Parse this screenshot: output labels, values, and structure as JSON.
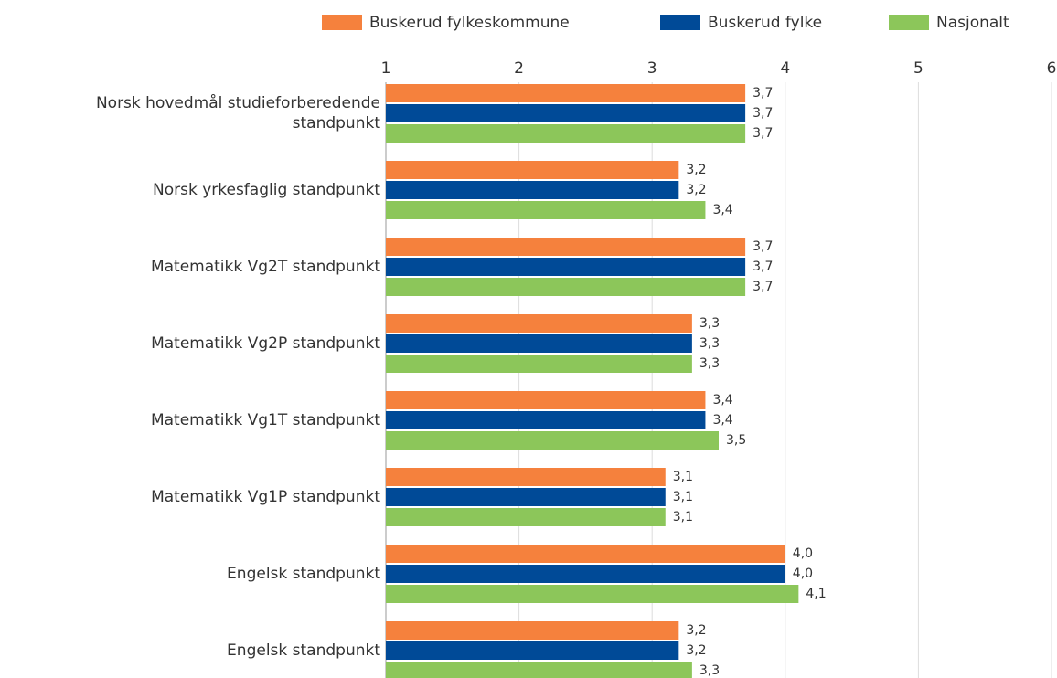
{
  "chart_data": {
    "type": "hbar",
    "categories": [
      "Norsk hovedmål studieforberedende standpunkt",
      "Norsk yrkesfaglig standpunkt",
      "Matematikk Vg2T standpunkt",
      "Matematikk Vg2P standpunkt",
      "Matematikk Vg1T standpunkt",
      "Matematikk Vg1P standpunkt",
      "Engelsk standpunkt",
      "Engelsk standpunkt"
    ],
    "series": [
      {
        "name": "Buskerud fylkeskommune",
        "color": "#f5813d",
        "values": [
          3.7,
          3.2,
          3.7,
          3.3,
          3.4,
          3.1,
          4.0,
          3.2
        ],
        "value_labels": [
          "3,7",
          "3,2",
          "3,7",
          "3,3",
          "3,4",
          "3,1",
          "4,0",
          "3,2"
        ]
      },
      {
        "name": "Buskerud fylke",
        "color": "#004a97",
        "values": [
          3.7,
          3.2,
          3.7,
          3.3,
          3.4,
          3.1,
          4.0,
          3.2
        ],
        "value_labels": [
          "3,7",
          "3,2",
          "3,7",
          "3,3",
          "3,4",
          "3,1",
          "4,0",
          "3,2"
        ]
      },
      {
        "name": "Nasjonalt",
        "color": "#8cc65a",
        "values": [
          3.7,
          3.4,
          3.7,
          3.3,
          3.5,
          3.1,
          4.1,
          3.3
        ],
        "value_labels": [
          "3,7",
          "3,4",
          "3,7",
          "3,3",
          "3,5",
          "3,1",
          "4,1",
          "3,3"
        ]
      }
    ],
    "xlim": [
      1,
      6
    ],
    "xticks": [
      1,
      2,
      3,
      4,
      5,
      6
    ],
    "grid": true,
    "legend": "top-right"
  }
}
